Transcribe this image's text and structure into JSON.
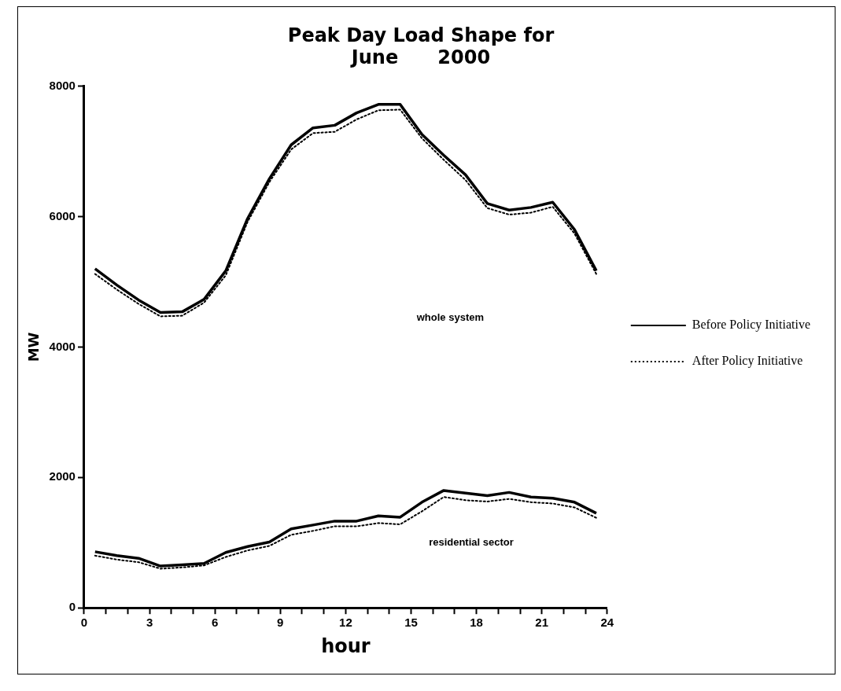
{
  "chart_data": {
    "type": "line",
    "title": "Peak Day Load Shape for\nJune      2000",
    "xlabel": "hour",
    "ylabel": "MW",
    "x": [
      0.5,
      1.5,
      2.5,
      3.5,
      4.5,
      5.5,
      6.5,
      7.5,
      8.5,
      9.5,
      10.5,
      11.5,
      12.5,
      13.5,
      14.5,
      15.5,
      16.5,
      17.5,
      18.5,
      19.5,
      20.5,
      21.5,
      22.5,
      23.5
    ],
    "series": [
      {
        "name": "Before Policy Initiative",
        "color": "#000000",
        "line_style": "solid",
        "values": [
          5200,
          4950,
          4720,
          4530,
          4540,
          4730,
          5170,
          5970,
          6580,
          7100,
          7360,
          7400,
          7590,
          7720,
          7720,
          7260,
          6940,
          6640,
          6200,
          6100,
          6140,
          6220,
          5800,
          5170
        ]
      },
      {
        "name": "After Policy Initiative",
        "color": "#000000",
        "line_style": "dotted",
        "values": [
          5120,
          4880,
          4660,
          4470,
          4480,
          4680,
          5100,
          5920,
          6530,
          7030,
          7280,
          7300,
          7490,
          7630,
          7640,
          7200,
          6870,
          6560,
          6130,
          6030,
          6060,
          6150,
          5740,
          5120
        ]
      },
      {
        "color": "#000000",
        "line_style": "solid",
        "values": [
          860,
          800,
          760,
          640,
          660,
          680,
          850,
          940,
          1010,
          1210,
          1270,
          1330,
          1330,
          1410,
          1390,
          1620,
          1800,
          1760,
          1720,
          1770,
          1700,
          1680,
          1620,
          1450
        ]
      },
      {
        "color": "#000000",
        "line_style": "dotted",
        "values": [
          800,
          740,
          700,
          600,
          620,
          650,
          780,
          880,
          950,
          1120,
          1180,
          1250,
          1250,
          1300,
          1280,
          1480,
          1700,
          1650,
          1630,
          1670,
          1620,
          1600,
          1540,
          1380
        ]
      }
    ],
    "xlim": [
      0,
      24
    ],
    "xticks": [
      0,
      {
        "value": 1,
        "label": null
      },
      {
        "value": 2,
        "label": null
      },
      3,
      {
        "value": 4,
        "label": null
      },
      {
        "value": 5,
        "label": null
      },
      6,
      {
        "value": 7,
        "label": null
      },
      {
        "value": 8,
        "label": null
      },
      9,
      {
        "value": 10,
        "label": null
      },
      {
        "value": 11,
        "label": null
      },
      12,
      {
        "value": 13,
        "label": null
      },
      {
        "value": 14,
        "label": null
      },
      15,
      {
        "value": 16,
        "label": null
      },
      {
        "value": 17,
        "label": null
      },
      18,
      {
        "value": 19,
        "label": null
      },
      {
        "value": 20,
        "label": null
      },
      21,
      {
        "value": 22,
        "label": null
      },
      {
        "value": 23,
        "label": null
      },
      24
    ],
    "ylim": [
      0,
      8000
    ],
    "yticks": [
      0,
      2000,
      4000,
      6000,
      8000
    ],
    "grid": false,
    "legend": "right",
    "marker": "none",
    "annotations": [
      "whole system",
      "residential sector"
    ]
  }
}
